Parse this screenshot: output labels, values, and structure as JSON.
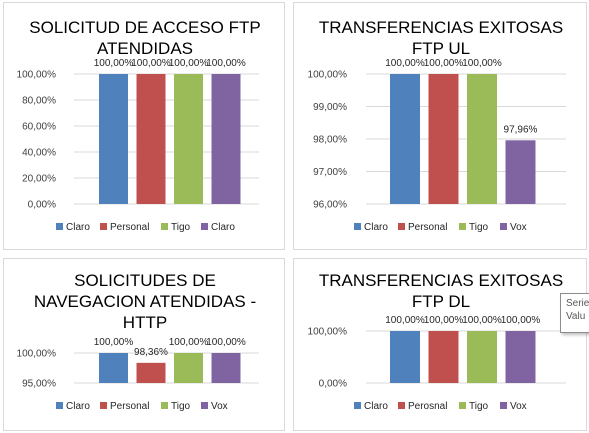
{
  "colors": {
    "blue": "#4f81bd",
    "red": "#c0504d",
    "green": "#9bbb59",
    "purple": "#8064a2",
    "grid": "#d9d9d9",
    "border": "#d9d9d9"
  },
  "chart_data": [
    {
      "type": "bar",
      "title_lines": [
        "SOLICITUD DE ACCESO FTP",
        "ATENDIDAS"
      ],
      "categories": [
        ""
      ],
      "series": [
        {
          "name": "Claro",
          "values": [
            100.0
          ],
          "label": "100,00%"
        },
        {
          "name": "Personal",
          "values": [
            100.0
          ],
          "label": "100,00%"
        },
        {
          "name": "Tigo",
          "values": [
            100.0
          ],
          "label": "100,00%"
        },
        {
          "name": "Claro",
          "values": [
            100.0
          ],
          "label": "100,00%"
        }
      ],
      "ylim": [
        0,
        100
      ],
      "yticks": [
        0,
        20,
        40,
        60,
        80,
        100
      ],
      "ytick_labels": [
        "0,00%",
        "20,00%",
        "40,00%",
        "60,00%",
        "80,00%",
        "100,00%"
      ],
      "grid": true,
      "legend": "bottom"
    },
    {
      "type": "bar",
      "title_lines": [
        "TRANSFERENCIAS EXITOSAS",
        "FTP UL"
      ],
      "categories": [
        ""
      ],
      "series": [
        {
          "name": "Claro",
          "values": [
            100.0
          ],
          "label": "100,00%"
        },
        {
          "name": "Personal",
          "values": [
            100.0
          ],
          "label": "100,00%"
        },
        {
          "name": "Tigo",
          "values": [
            100.0
          ],
          "label": "100,00%"
        },
        {
          "name": "Vox",
          "values": [
            97.96
          ],
          "label": "97,96%"
        }
      ],
      "ylim": [
        96,
        100
      ],
      "yticks": [
        96,
        97,
        98,
        99,
        100
      ],
      "ytick_labels": [
        "96,00%",
        "97,00%",
        "98,00%",
        "99,00%",
        "100,00%"
      ],
      "grid": true,
      "legend": "bottom"
    },
    {
      "type": "bar",
      "title_lines": [
        "SOLICITUDES DE",
        "NAVEGACION ATENDIDAS -",
        "HTTP"
      ],
      "categories": [
        ""
      ],
      "series": [
        {
          "name": "Claro",
          "values": [
            100.0
          ],
          "label": "100,00%"
        },
        {
          "name": "Personal",
          "values": [
            98.36
          ],
          "label": "98,36%"
        },
        {
          "name": "Tigo",
          "values": [
            100.0
          ],
          "label": "100,00%"
        },
        {
          "name": "Vox",
          "values": [
            100.0
          ],
          "label": "100,00%"
        }
      ],
      "ylim": [
        95,
        100
      ],
      "yticks": [
        95,
        100
      ],
      "ytick_labels": [
        "95,00%",
        "100,00%"
      ],
      "grid": true,
      "legend": "bottom"
    },
    {
      "type": "bar",
      "title_lines": [
        "TRANSFERENCIAS EXITOSAS",
        "FTP DL"
      ],
      "categories": [
        ""
      ],
      "series": [
        {
          "name": "Claro",
          "values": [
            100.0
          ],
          "label": "100,00%"
        },
        {
          "name": "Perosnal",
          "values": [
            100.0
          ],
          "label": "100,00%"
        },
        {
          "name": "Tigo",
          "values": [
            100.0
          ],
          "label": "100,00%"
        },
        {
          "name": "Vox",
          "values": [
            100.0
          ],
          "label": "100,00%"
        }
      ],
      "ylim": [
        0,
        100
      ],
      "yticks": [
        0,
        100
      ],
      "ytick_labels": [
        "0,00%",
        "100,00%"
      ],
      "grid": true,
      "legend": "bottom"
    }
  ],
  "tooltip": {
    "line1": "Serie",
    "line2": "Valu"
  }
}
